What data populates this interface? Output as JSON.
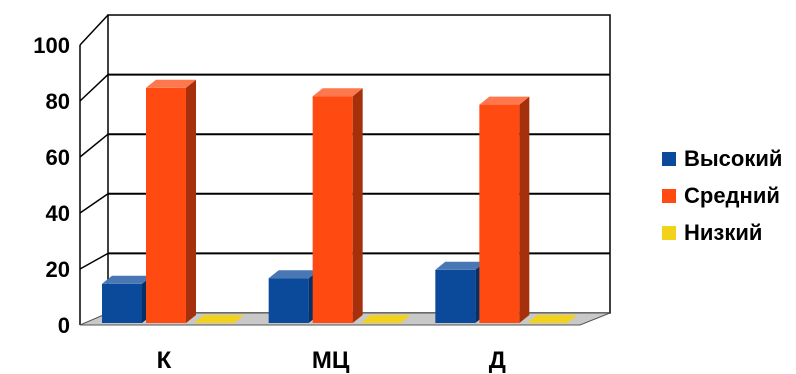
{
  "chart_data": {
    "type": "bar",
    "categories": [
      "К",
      "МЦ",
      "Д"
    ],
    "series": [
      {
        "name": "Высокий",
        "values": [
          14,
          16,
          19
        ],
        "color": "#0b4a9a"
      },
      {
        "name": "Средний",
        "values": [
          84,
          81,
          78
        ],
        "color": "#ff4a12"
      },
      {
        "name": "Низкий",
        "values": [
          0,
          0,
          0
        ],
        "color": "#f2d21a"
      }
    ],
    "ylim": [
      0,
      100
    ],
    "yticks": [
      "0",
      "20",
      "40",
      "60",
      "80",
      "100"
    ],
    "grid": true,
    "legend": "right",
    "style": "3d-column"
  }
}
